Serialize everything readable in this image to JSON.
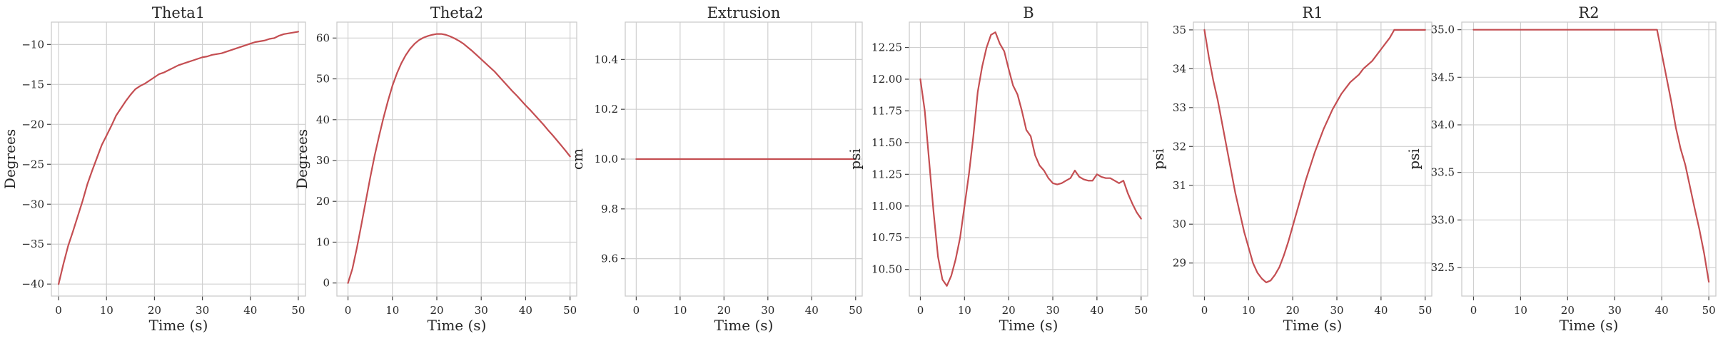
{
  "style": {
    "series_color": "#c44e52",
    "grid": true,
    "background": "#ffffff"
  },
  "chart_data": [
    {
      "type": "line",
      "title": "Theta1",
      "xlabel": "Time (s)",
      "ylabel": "Degrees",
      "xlim": [
        -1.5,
        51.5
      ],
      "ylim": [
        -41.5,
        -7.2
      ],
      "xticks": [
        0,
        10,
        20,
        30,
        40,
        50
      ],
      "yticks": [
        -40,
        -35,
        -30,
        -25,
        -20,
        -15,
        -10
      ],
      "ytick_labels": [
        "−40",
        "−35",
        "−30",
        "−25",
        "−20",
        "−15",
        "−10"
      ],
      "x": [
        0,
        1,
        2,
        3,
        4,
        5,
        6,
        7,
        8,
        9,
        10,
        11,
        12,
        13,
        14,
        15,
        16,
        17,
        18,
        19,
        20,
        21,
        22,
        23,
        24,
        25,
        26,
        27,
        28,
        29,
        30,
        31,
        32,
        33,
        34,
        35,
        36,
        37,
        38,
        39,
        40,
        41,
        42,
        43,
        44,
        45,
        46,
        47,
        48,
        49,
        50
      ],
      "y": [
        -40,
        -37.5,
        -35.2,
        -33.4,
        -31.5,
        -29.6,
        -27.5,
        -25.8,
        -24.2,
        -22.6,
        -21.4,
        -20.2,
        -18.9,
        -18.0,
        -17.1,
        -16.3,
        -15.6,
        -15.2,
        -14.9,
        -14.5,
        -14.1,
        -13.7,
        -13.5,
        -13.2,
        -12.9,
        -12.6,
        -12.4,
        -12.2,
        -12.0,
        -11.8,
        -11.6,
        -11.5,
        -11.3,
        -11.2,
        -11.1,
        -10.9,
        -10.7,
        -10.5,
        -10.3,
        -10.1,
        -9.9,
        -9.7,
        -9.6,
        -9.5,
        -9.3,
        -9.2,
        -8.9,
        -8.7,
        -8.6,
        -8.5,
        -8.4
      ]
    },
    {
      "type": "line",
      "title": "Theta2",
      "xlabel": "Time (s)",
      "ylabel": "Degrees",
      "xlim": [
        -2.5,
        51.5
      ],
      "ylim": [
        -3.2,
        63.9
      ],
      "xticks": [
        0,
        10,
        20,
        30,
        40,
        50
      ],
      "yticks": [
        0,
        10,
        20,
        30,
        40,
        50,
        60
      ],
      "ytick_labels": [
        "0",
        "10",
        "20",
        "30",
        "40",
        "50",
        "60"
      ],
      "x": [
        0,
        1,
        2,
        3,
        4,
        5,
        6,
        7,
        8,
        9,
        10,
        11,
        12,
        13,
        14,
        15,
        16,
        17,
        18,
        19,
        20,
        21,
        22,
        23,
        24,
        25,
        26,
        27,
        28,
        29,
        30,
        31,
        32,
        33,
        34,
        35,
        36,
        37,
        38,
        39,
        40,
        41,
        42,
        43,
        44,
        45,
        46,
        47,
        48,
        49,
        50
      ],
      "y": [
        0,
        3.5,
        8.6,
        14.2,
        20.0,
        25.8,
        31.2,
        36.0,
        40.5,
        44.6,
        48.3,
        51.3,
        53.8,
        55.8,
        57.4,
        58.6,
        59.5,
        60.1,
        60.5,
        60.8,
        61.0,
        61.0,
        60.8,
        60.4,
        59.9,
        59.3,
        58.6,
        57.7,
        56.8,
        55.8,
        54.8,
        53.8,
        52.8,
        51.8,
        50.6,
        49.4,
        48.2,
        47.0,
        45.9,
        44.7,
        43.5,
        42.4,
        41.2,
        40.0,
        38.8,
        37.5,
        36.3,
        35.0,
        33.7,
        32.4,
        31.0
      ]
    },
    {
      "type": "line",
      "title": "Extrusion",
      "xlabel": "Time (s)",
      "ylabel": "cm",
      "xlim": [
        -2.5,
        51.5
      ],
      "ylim": [
        9.45,
        10.55
      ],
      "xticks": [
        0,
        10,
        20,
        30,
        40,
        50
      ],
      "yticks": [
        9.6,
        9.8,
        10.0,
        10.2,
        10.4
      ],
      "ytick_labels": [
        "9.6",
        "9.8",
        "10.0",
        "10.2",
        "10.4"
      ],
      "x": [
        0,
        50
      ],
      "y": [
        10.0,
        10.0
      ]
    },
    {
      "type": "line",
      "title": "B",
      "xlabel": "Time (s)",
      "ylabel": "psi",
      "xlim": [
        -2.5,
        51.5
      ],
      "ylim": [
        10.29,
        12.45
      ],
      "xticks": [
        0,
        10,
        20,
        30,
        40,
        50
      ],
      "yticks": [
        10.5,
        10.75,
        11.0,
        11.25,
        11.5,
        11.75,
        12.0,
        12.25
      ],
      "ytick_labels": [
        "10.50",
        "10.75",
        "11.00",
        "11.25",
        "11.50",
        "11.75",
        "12.00",
        "12.25"
      ],
      "x": [
        0,
        1,
        2,
        3,
        4,
        5,
        6,
        7,
        8,
        9,
        10,
        11,
        12,
        13,
        14,
        15,
        16,
        17,
        18,
        19,
        20,
        21,
        22,
        23,
        24,
        25,
        26,
        27,
        28,
        29,
        30,
        31,
        32,
        33,
        34,
        35,
        36,
        37,
        38,
        39,
        40,
        41,
        42,
        43,
        44,
        45,
        46,
        47,
        48,
        49,
        50
      ],
      "y": [
        12.0,
        11.75,
        11.35,
        10.95,
        10.6,
        10.42,
        10.37,
        10.45,
        10.58,
        10.75,
        11.0,
        11.25,
        11.55,
        11.9,
        12.1,
        12.25,
        12.35,
        12.37,
        12.28,
        12.22,
        12.08,
        11.95,
        11.88,
        11.75,
        11.6,
        11.55,
        11.4,
        11.32,
        11.28,
        11.22,
        11.18,
        11.17,
        11.18,
        11.2,
        11.22,
        11.28,
        11.23,
        11.21,
        11.2,
        11.2,
        11.25,
        11.23,
        11.22,
        11.22,
        11.2,
        11.18,
        11.2,
        11.1,
        11.02,
        10.95,
        10.9
      ]
    },
    {
      "type": "line",
      "title": "R1",
      "xlabel": "Time (s)",
      "ylabel": "psi",
      "xlim": [
        -2.5,
        51.5
      ],
      "ylim": [
        28.15,
        35.2
      ],
      "xticks": [
        0,
        10,
        20,
        30,
        40,
        50
      ],
      "yticks": [
        29,
        30,
        31,
        32,
        33,
        34,
        35
      ],
      "ytick_labels": [
        "29",
        "30",
        "31",
        "32",
        "33",
        "34",
        "35"
      ],
      "x": [
        0,
        1,
        2,
        3,
        4,
        5,
        6,
        7,
        8,
        9,
        10,
        11,
        12,
        13,
        14,
        15,
        16,
        17,
        18,
        19,
        20,
        21,
        22,
        23,
        24,
        25,
        26,
        27,
        28,
        29,
        30,
        31,
        32,
        33,
        34,
        35,
        36,
        37,
        38,
        39,
        40,
        41,
        42,
        43,
        44,
        45,
        46,
        47,
        48,
        49,
        50
      ],
      "y": [
        35.0,
        34.3,
        33.7,
        33.2,
        32.6,
        32.0,
        31.4,
        30.8,
        30.3,
        29.8,
        29.4,
        29.0,
        28.75,
        28.6,
        28.5,
        28.55,
        28.7,
        28.9,
        29.2,
        29.55,
        29.95,
        30.35,
        30.75,
        31.15,
        31.5,
        31.85,
        32.15,
        32.45,
        32.7,
        32.95,
        33.15,
        33.35,
        33.5,
        33.65,
        33.75,
        33.85,
        34.0,
        34.1,
        34.2,
        34.35,
        34.5,
        34.65,
        34.8,
        35.0,
        35.0,
        35.0,
        35.0,
        35.0,
        35.0,
        35.0,
        35.0
      ]
    },
    {
      "type": "line",
      "title": "R2",
      "xlabel": "Time (s)",
      "ylabel": "psi",
      "xlim": [
        -2.5,
        51.5
      ],
      "ylim": [
        32.2,
        35.08
      ],
      "xticks": [
        0,
        10,
        20,
        30,
        40,
        50
      ],
      "yticks": [
        32.5,
        33.0,
        33.5,
        34.0,
        34.5,
        35.0
      ],
      "ytick_labels": [
        "32.5",
        "33.0",
        "33.5",
        "34.0",
        "34.5",
        "35.0"
      ],
      "x": [
        0,
        39,
        40,
        41,
        42,
        43,
        44,
        45,
        46,
        47,
        48,
        49,
        50
      ],
      "y": [
        35.0,
        35.0,
        34.75,
        34.5,
        34.25,
        33.97,
        33.75,
        33.58,
        33.35,
        33.12,
        32.9,
        32.65,
        32.35
      ]
    }
  ]
}
